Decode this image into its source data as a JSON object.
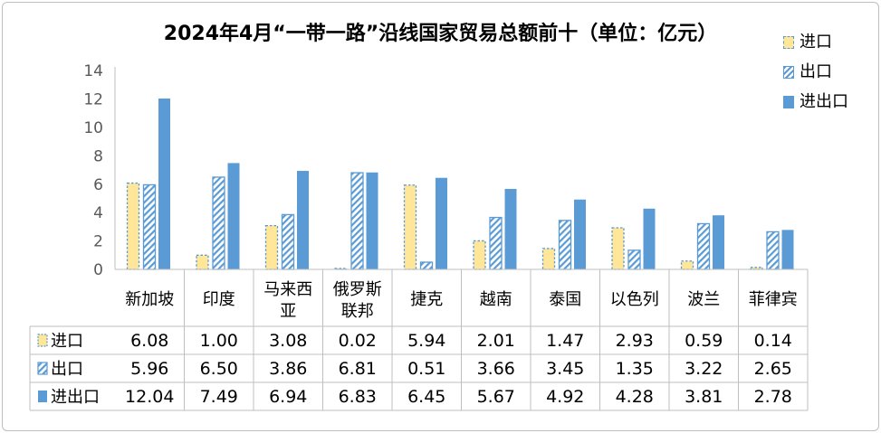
{
  "chart_data": {
    "type": "bar",
    "title": "2024年4月“一带一路”沿线国家贸易总额前十（单位：亿元）",
    "categories": [
      "新加坡",
      "印度",
      "马来西亚",
      "俄罗斯联邦",
      "捷克",
      "越南",
      "泰国",
      "以色列",
      "波兰",
      "菲律宾"
    ],
    "category_lines": [
      [
        "新加坡"
      ],
      [
        "印度"
      ],
      [
        "马来西",
        "亚"
      ],
      [
        "俄罗斯",
        "联邦"
      ],
      [
        "捷克"
      ],
      [
        "越南"
      ],
      [
        "泰国"
      ],
      [
        "以色列"
      ],
      [
        "波兰"
      ],
      [
        "菲律宾"
      ]
    ],
    "series": [
      {
        "name": "进口",
        "values": [
          6.08,
          1.0,
          3.08,
          0.02,
          5.94,
          2.01,
          1.47,
          2.93,
          0.59,
          0.14
        ],
        "labels": [
          "6.08",
          "1.00",
          "3.08",
          "0.02",
          "5.94",
          "2.01",
          "1.47",
          "2.93",
          "0.59",
          "0.14"
        ]
      },
      {
        "name": "出口",
        "values": [
          5.96,
          6.5,
          3.86,
          6.81,
          0.51,
          3.66,
          3.45,
          1.35,
          3.22,
          2.65
        ],
        "labels": [
          "5.96",
          "6.50",
          "3.86",
          "6.81",
          "0.51",
          "3.66",
          "3.45",
          "1.35",
          "3.22",
          "2.65"
        ]
      },
      {
        "name": "进出口",
        "values": [
          12.04,
          7.49,
          6.94,
          6.83,
          6.45,
          5.67,
          4.92,
          4.28,
          3.81,
          2.78
        ],
        "labels": [
          "12.04",
          "7.49",
          "6.94",
          "6.83",
          "6.45",
          "5.67",
          "4.92",
          "4.28",
          "3.81",
          "2.78"
        ]
      }
    ],
    "yticks": [
      "0",
      "2",
      "4",
      "6",
      "8",
      "10",
      "12",
      "14"
    ],
    "ylim": [
      0,
      14
    ],
    "grid": false,
    "legend_position": "top-right",
    "data_table": true
  },
  "colors": {
    "import_fill": "#ffe699",
    "series_blue": "#5b9bd5",
    "axis": "#bfbfbf"
  }
}
